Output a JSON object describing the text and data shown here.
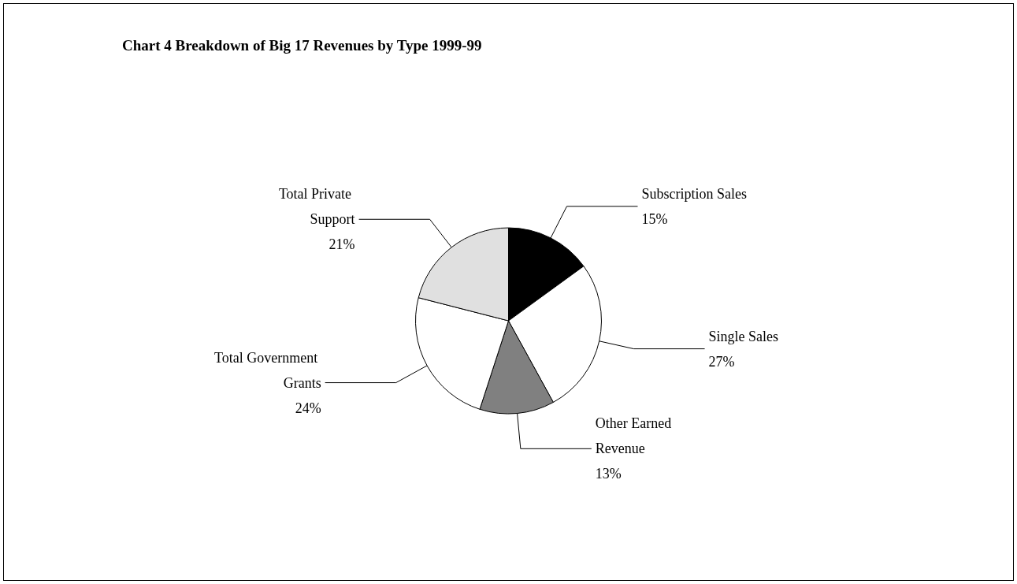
{
  "chart_data": {
    "type": "pie",
    "title": "Chart 4 Breakdown of Big 17 Revenues by Type 1999-99",
    "categories": [
      "Subscription Sales",
      "Single Sales",
      "Other Earned Revenue",
      "Total Government Grants",
      "Total Private Support"
    ],
    "values": [
      15,
      27,
      13,
      24,
      21
    ],
    "value_labels": [
      "15%",
      "27%",
      "13%",
      "24%",
      "21%"
    ],
    "colors": [
      "#000000",
      "#ffffff",
      "#808080",
      "#ffffff",
      "#e0e0e0"
    ]
  }
}
